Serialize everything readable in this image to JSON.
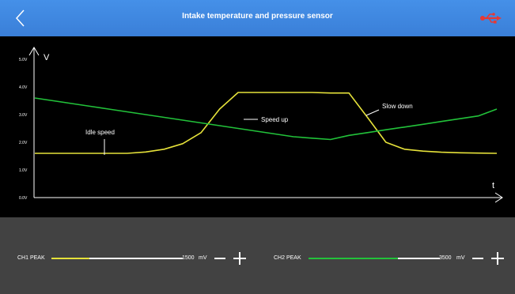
{
  "header": {
    "title": "Intake temperature and pressure sensor"
  },
  "icons": {
    "back": "chevron-left-icon",
    "usb": "usb-icon"
  },
  "colors": {
    "header": "#3f87e0",
    "ch1": "#e6e23a",
    "ch2": "#22c23a",
    "usb": "#e53935"
  },
  "chart_data": {
    "type": "line",
    "xlabel": "t",
    "ylabel": "V",
    "y_ticks": [
      "0.0V",
      "1.0V",
      "2.0V",
      "3.0V",
      "4.0V",
      "5.0V"
    ],
    "ylim": [
      0,
      5
    ],
    "series": [
      {
        "values": [
          1.6,
          1.6,
          1.6,
          1.6,
          1.6,
          1.6,
          1.65,
          1.75,
          1.95,
          2.35,
          3.2,
          3.8,
          3.8,
          3.8,
          3.8,
          3.8,
          3.78,
          3.78,
          2.9,
          2.0,
          1.75,
          1.68,
          1.64,
          1.62,
          1.61,
          1.6
        ]
      },
      {
        "values": [
          3.6,
          3.5,
          3.4,
          3.3,
          3.2,
          3.1,
          3.0,
          2.9,
          2.8,
          2.7,
          2.6,
          2.5,
          2.4,
          2.3,
          2.2,
          2.15,
          2.1,
          2.25,
          2.35,
          2.45,
          2.55,
          2.65,
          2.75,
          2.85,
          2.95,
          3.2
        ]
      }
    ],
    "annotations": [
      "Idle speed",
      "Speed up",
      "Slow down"
    ]
  },
  "controls": {
    "ch1": {
      "label": "CH1 PEAK",
      "value": "1500",
      "unit": "mV"
    },
    "ch2": {
      "label": "CH2 PEAK",
      "value": "3500",
      "unit": "mV"
    }
  }
}
